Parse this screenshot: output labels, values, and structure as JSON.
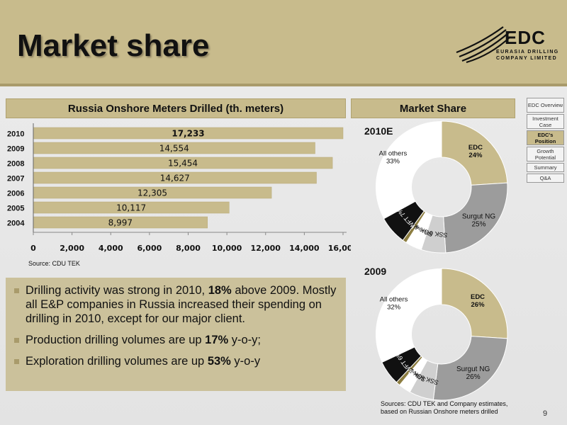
{
  "header": {
    "title": "Market share",
    "logo": {
      "name": "EDC",
      "line1": "EURASIA DRILLING",
      "line2": "COMPANY LIMITED"
    }
  },
  "nav": {
    "items": [
      {
        "label": "EDC Overview",
        "active": false
      },
      {
        "label": "Investment Case",
        "active": false
      },
      {
        "label": "EDC's Position",
        "active": true
      },
      {
        "label": "Growth Potential",
        "active": false
      },
      {
        "label": "Summary",
        "active": false
      },
      {
        "label": "Q&A",
        "active": false
      }
    ]
  },
  "bar_panel": {
    "heading": "Russia Onshore Meters Drilled (th. meters)",
    "source": "Source: CDU TEK"
  },
  "pie_panel": {
    "heading": "Market Share",
    "sources": "Sources: CDU TEK and Company estimates, based on Russian Onshore meters drilled"
  },
  "bullets": {
    "b1_pre": "Drilling activity was strong in 2010, ",
    "b1_bold": "18%",
    "b1_post": " above 2009. Mostly all E&P companies in Russia increased their spending on drilling in 2010, except for our major client.",
    "b2_pre": "Production drilling volumes are up ",
    "b2_bold": "17%",
    "b2_post": " y-o-y;",
    "b3_pre": "Exploration drilling volumes are up ",
    "b3_bold": "53%",
    "b3_post": " y-o-y"
  },
  "page_number": "9",
  "colors": {
    "gold": "#c8bb8c",
    "gold_dark": "#a99b6b",
    "gray": "#9c9c9c",
    "light_gray": "#cfcfcf",
    "black": "#111111"
  },
  "chart_data": [
    {
      "type": "bar",
      "orientation": "horizontal",
      "title": "Russia Onshore Meters Drilled (th. meters)",
      "categories": [
        "2010",
        "2009",
        "2008",
        "2007",
        "2006",
        "2005",
        "2004"
      ],
      "values": [
        17233,
        14554,
        15454,
        14627,
        12305,
        10117,
        8997
      ],
      "data_labels": [
        "17,233",
        "14,554",
        "15,454",
        "14,627",
        "12,305",
        "10,117",
        "8,997"
      ],
      "xlim": [
        0,
        16000
      ],
      "xticks": [
        0,
        2000,
        4000,
        6000,
        8000,
        10000,
        12000,
        14000,
        16000
      ],
      "xtick_labels": [
        "0",
        "2,000",
        "4,000",
        "6,000",
        "8,000",
        "10,000",
        "12,000",
        "14,000",
        "16,000"
      ],
      "grid": false,
      "color": "#c8bb8c"
    },
    {
      "type": "pie",
      "donut": true,
      "title": "2010E",
      "slices": [
        {
          "label": "EDC",
          "value": 24,
          "text": "24%",
          "color": "#c8bb8c"
        },
        {
          "label": "Surgut NG",
          "value": 25,
          "text": "25%",
          "color": "#9c9c9c"
        },
        {
          "label": "SSK",
          "value": 6,
          "text": "6%",
          "color": "#cfcfcf"
        },
        {
          "label": "SGK",
          "value": 4,
          "text": "4%",
          "color": "#ffffff"
        },
        {
          "label": "Integra",
          "value": 1,
          "text": "1%",
          "color": "#8c7d40"
        },
        {
          "label": "WFT",
          "value": 7,
          "text": "7%",
          "color": "#111111"
        },
        {
          "label": "All others",
          "value": 33,
          "text": "33%",
          "color": "#ffffff"
        }
      ]
    },
    {
      "type": "pie",
      "donut": true,
      "title": "2009",
      "slices": [
        {
          "label": "EDC",
          "value": 26,
          "text": "26%",
          "color": "#c8bb8c"
        },
        {
          "label": "Surgut NG",
          "value": 26,
          "text": "26%",
          "color": "#9c9c9c"
        },
        {
          "label": "SSK",
          "value": 6,
          "text": "6%",
          "color": "#cfcfcf"
        },
        {
          "label": "SGK",
          "value": 3,
          "text": "3%",
          "color": "#ffffff"
        },
        {
          "label": "Integra",
          "value": 1,
          "text": "1%",
          "color": "#8c7d40"
        },
        {
          "label": "WFT",
          "value": 6,
          "text": "6%",
          "color": "#111111"
        },
        {
          "label": "All others",
          "value": 32,
          "text": "32%",
          "color": "#ffffff"
        }
      ]
    }
  ]
}
